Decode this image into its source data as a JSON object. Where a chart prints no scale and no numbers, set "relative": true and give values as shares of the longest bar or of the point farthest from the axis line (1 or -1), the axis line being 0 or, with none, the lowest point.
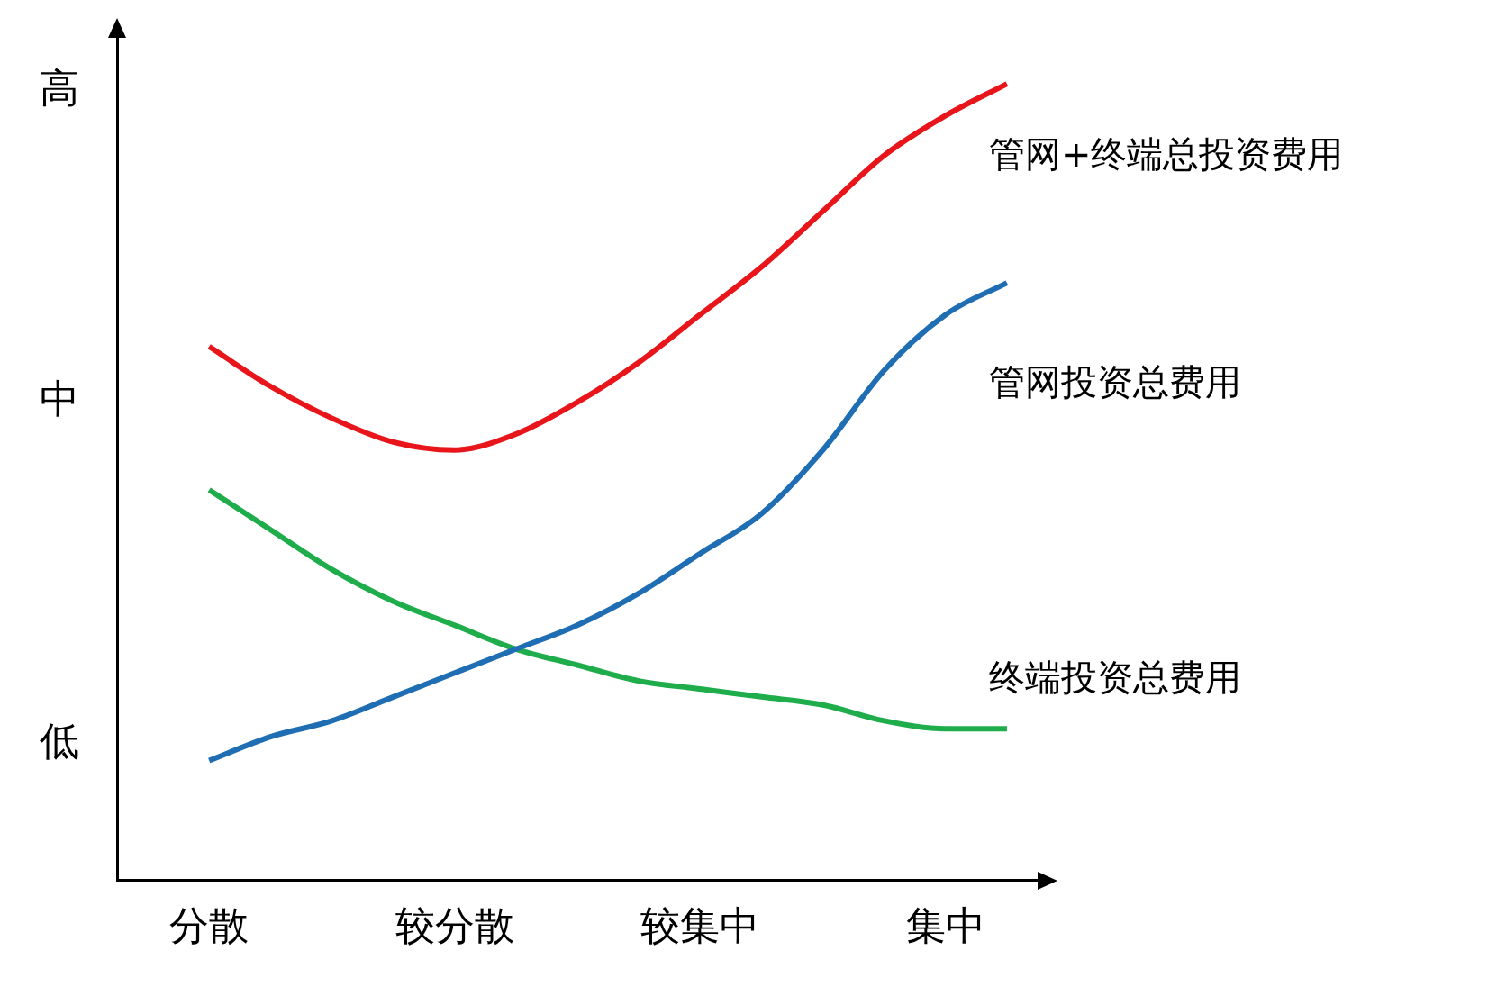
{
  "chart_data": {
    "type": "line",
    "relative": true,
    "categories": [
      null,
      "分散",
      null,
      null,
      null,
      "较分散",
      null,
      null,
      null,
      "较集中",
      null,
      null,
      null,
      "集中",
      null
    ],
    "annotations": [
      "高",
      "中",
      "低"
    ],
    "grid": false,
    "legend": false,
    "marker": "none",
    "line_style": "solid",
    "series": [
      {
        "name": "管网+终端总投资费用",
        "color": "#e8161b",
        "values": [
          null,
          0.67,
          0.62,
          0.58,
          0.55,
          0.54,
          0.56,
          0.6,
          0.65,
          0.71,
          0.77,
          0.84,
          0.91,
          0.96,
          1
        ]
      },
      {
        "name": "管网投资总费用",
        "color": "#1f6eb4",
        "values": [
          null,
          0.15,
          0.18,
          0.2,
          0.23,
          0.26,
          0.29,
          0.32,
          0.36,
          0.41,
          0.46,
          0.54,
          0.64,
          0.71,
          0.75
        ]
      },
      {
        "name": "终端投资总费用",
        "color": "#1fad4b",
        "values": [
          null,
          0.49,
          0.44,
          0.39,
          0.35,
          0.32,
          0.29,
          0.27,
          0.25,
          0.24,
          0.23,
          0.22,
          0.2,
          0.19,
          0.19
        ]
      }
    ]
  }
}
